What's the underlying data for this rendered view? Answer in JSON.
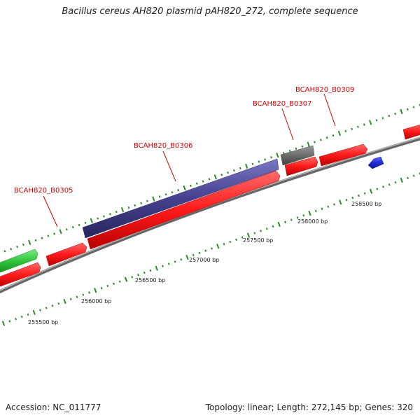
{
  "title": "Bacillus cereus AH820 plasmid pAH820_272, complete sequence",
  "footer": {
    "accession": "Accession: NC_011777",
    "topology": "Topology: linear; Length: 272,145 bp; Genes: 320"
  },
  "colors": {
    "backbone": "#8a8a8a",
    "cds_forward": "#ff1a1a",
    "cds_other": "#45418f",
    "cds_gray": "#6b6b6b",
    "cds_green": "#2fc43a",
    "cds_blue": "#1f2bd6",
    "tick": "#2a8a2a",
    "label": "#d40000"
  },
  "scale": {
    "labels": [
      "255500 bp",
      "256000 bp",
      "256500 bp",
      "257000 bp",
      "257500 bp",
      "258000 bp",
      "258500 bp"
    ]
  },
  "genes": [
    {
      "name": "BCAH820_B0305"
    },
    {
      "name": "BCAH820_B0306"
    },
    {
      "name": "BCAH820_B0307"
    },
    {
      "name": "BCAH820_B0309"
    }
  ]
}
